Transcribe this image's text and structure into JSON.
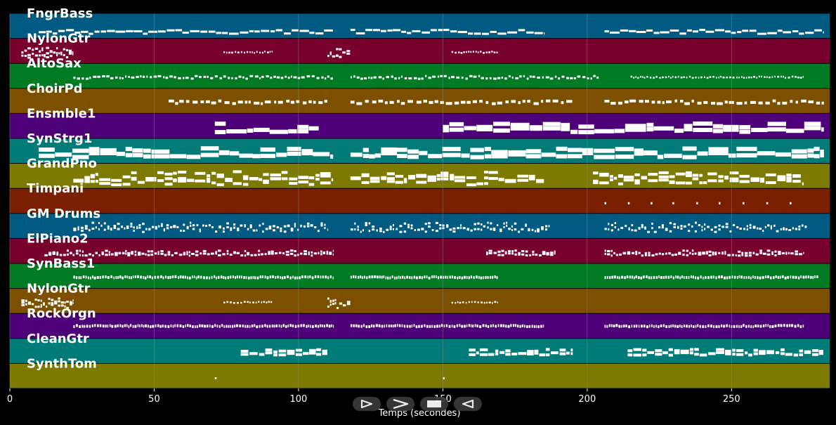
{
  "chart_data": {
    "type": "piano-roll",
    "xlabel": "Temps (secondes)",
    "xlim": [
      0,
      284
    ],
    "xticks": [
      0,
      50,
      100,
      150,
      200,
      250
    ],
    "colors": {
      "background": "#000000",
      "grid": "#8a8a8a",
      "note": "#ffffff"
    },
    "tracks": [
      {
        "name": "FngrBass",
        "color": "#005a82",
        "segments": [
          [
            10,
            112,
            "bass"
          ],
          [
            118,
            185,
            "bass"
          ],
          [
            206,
            282,
            "bass"
          ]
        ]
      },
      {
        "name": "NylonGtr",
        "color": "#78002d",
        "segments": [
          [
            4,
            22,
            "chords"
          ],
          [
            74,
            91,
            "sparse"
          ],
          [
            110,
            118,
            "chords"
          ],
          [
            153,
            169,
            "sparse"
          ]
        ]
      },
      {
        "name": "AltoSax",
        "color": "#007b23",
        "segments": [
          [
            22,
            112,
            "melody"
          ],
          [
            118,
            204,
            "melody"
          ],
          [
            215,
            275,
            "sparse"
          ]
        ]
      },
      {
        "name": "ChoirPd",
        "color": "#7d5000",
        "segments": [
          [
            55,
            110,
            "pad"
          ],
          [
            118,
            195,
            "pad"
          ],
          [
            206,
            282,
            "pad"
          ]
        ]
      },
      {
        "name": "Ensmble1",
        "color": "#4e0078",
        "segments": [
          [
            71,
            107,
            "strings"
          ],
          [
            150,
            282,
            "strings"
          ]
        ]
      },
      {
        "name": "SynStrg1",
        "color": "#007b78",
        "segments": [
          [
            10,
            112,
            "strings"
          ],
          [
            118,
            282,
            "strings"
          ]
        ]
      },
      {
        "name": "GrandPno",
        "color": "#7c7a00",
        "segments": [
          [
            22,
            112,
            "piano"
          ],
          [
            118,
            185,
            "piano"
          ],
          [
            202,
            275,
            "piano"
          ]
        ]
      },
      {
        "name": "Timpani",
        "color": "#7a1f00",
        "segments": [
          [
            206,
            272,
            "hits"
          ]
        ]
      },
      {
        "name": "GM Drums",
        "color": "#005a82",
        "segments": [
          [
            22,
            110,
            "drums"
          ],
          [
            118,
            187,
            "drums"
          ],
          [
            206,
            276,
            "drums"
          ]
        ]
      },
      {
        "name": "ElPiano2",
        "color": "#78002d",
        "segments": [
          [
            12,
            112,
            "keys"
          ],
          [
            165,
            189,
            "keys"
          ],
          [
            206,
            275,
            "keys"
          ]
        ]
      },
      {
        "name": "SynBass1",
        "color": "#007b23",
        "segments": [
          [
            22,
            112,
            "bass2"
          ],
          [
            118,
            169,
            "bass2"
          ],
          [
            206,
            280,
            "bass2"
          ]
        ]
      },
      {
        "name": "NylonGtr",
        "color": "#7d5000",
        "segments": [
          [
            4,
            22,
            "chords"
          ],
          [
            74,
            91,
            "sparse"
          ],
          [
            110,
            118,
            "chords"
          ],
          [
            153,
            169,
            "sparse"
          ]
        ]
      },
      {
        "name": "RockOrgn",
        "color": "#4e0078",
        "segments": [
          [
            22,
            112,
            "organ"
          ],
          [
            118,
            185,
            "organ"
          ],
          [
            206,
            275,
            "organ"
          ]
        ]
      },
      {
        "name": "CleanGtr",
        "color": "#007b78",
        "segments": [
          [
            80,
            110,
            "guitar"
          ],
          [
            159,
            195,
            "guitar"
          ],
          [
            214,
            282,
            "guitar"
          ]
        ]
      },
      {
        "name": "SynthTom",
        "color": "#7c7a00",
        "segments": [
          [
            71,
            73,
            "hits"
          ],
          [
            150,
            152,
            "hits"
          ]
        ]
      }
    ]
  },
  "controls": [
    {
      "name": "play-forward-button",
      "icon": "play-outline-icon"
    },
    {
      "name": "next-button",
      "icon": "chevron-right-icon"
    },
    {
      "name": "stop-button",
      "icon": "stop-icon"
    },
    {
      "name": "play-reverse-button",
      "icon": "play-reverse-icon"
    }
  ]
}
